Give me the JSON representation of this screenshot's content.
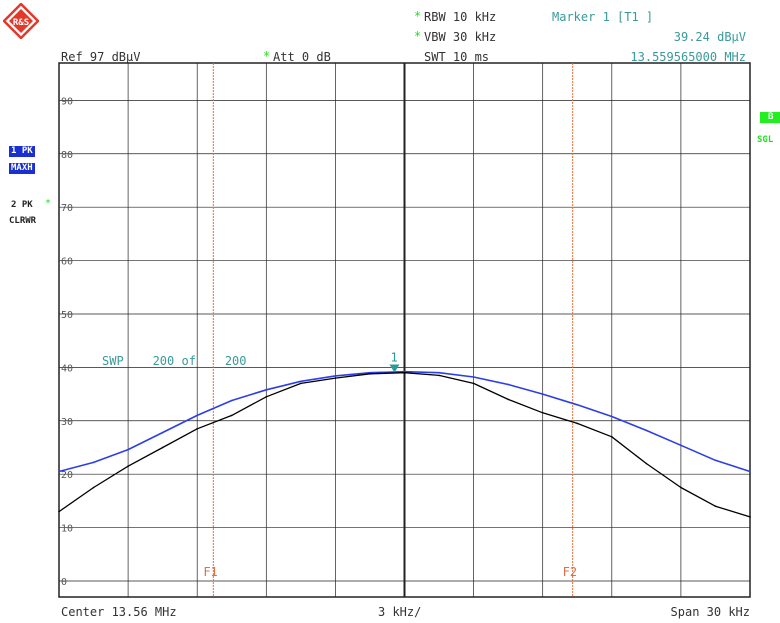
{
  "logo": {
    "letters": "R&S",
    "color": "#e23a2a"
  },
  "header": {
    "rbw": "RBW 10 kHz",
    "vbw": "VBW 30 kHz",
    "swt": "SWT 10 ms",
    "ref": "Ref  97 dBµV",
    "att": "Att  0 dB",
    "changed_mark": "*",
    "marker_title": "Marker 1 [T1 ]",
    "marker_level": "39.24 dBµV",
    "marker_freq": "13.559565000 MHz"
  },
  "side_left": {
    "trace1_label": "1 PK",
    "trace1_mode": "MAXH",
    "trace2_label": "2 PK",
    "trace2_mark": "*",
    "trace2_mode": "CLRWR"
  },
  "side_right": {
    "badge": "B",
    "mode": "SGL"
  },
  "sweep_info": "SWP    200 of    200",
  "marker_label": "1",
  "lines": {
    "f1": "F1",
    "f2": "F2"
  },
  "footer": {
    "center": "Center 13.56 MHz",
    "div": "3 kHz/",
    "span": "Span 30 kHz"
  },
  "colors": {
    "trace_maxhold": "#2b3ee8",
    "trace_clearwrite": "#000000",
    "marker": "#2a9a9a",
    "frequency_lines": "#e07040",
    "grid": "#222222",
    "annotation": "#3a9a9a",
    "changed_mark": "#22dd22"
  },
  "chart_data": {
    "type": "line",
    "title": "",
    "xlabel": "",
    "ylabel": "",
    "xlim": [
      13.545,
      13.575
    ],
    "ylim": [
      -3,
      97
    ],
    "x_unit": "MHz",
    "y_unit": "dBµV",
    "y_tick_labels": [
      "90",
      "80",
      "70",
      "60",
      "50",
      "40",
      "30",
      "20",
      "10",
      "0"
    ],
    "y_tick_values": [
      90,
      80,
      70,
      60,
      50,
      40,
      30,
      20,
      10,
      0
    ],
    "grid": true,
    "vertical_lines": [
      {
        "label": "F1",
        "x": 13.5517
      },
      {
        "label": "F2",
        "x": 13.5673
      }
    ],
    "marker": {
      "label": "1",
      "x": 13.559565,
      "y": 39.24
    },
    "series": [
      {
        "key": "trace1_maxhold",
        "x": [
          13.545,
          13.5465,
          13.548,
          13.5495,
          13.551,
          13.5525,
          13.554,
          13.5555,
          13.557,
          13.5585,
          13.56,
          13.5615,
          13.563,
          13.5645,
          13.566,
          13.5675,
          13.569,
          13.5705,
          13.572,
          13.5735,
          13.575
        ],
        "values": [
          20.5,
          22.2,
          24.6,
          27.8,
          31.0,
          33.8,
          35.8,
          37.4,
          38.4,
          39.0,
          39.2,
          39.0,
          38.2,
          36.8,
          35.0,
          33.0,
          30.8,
          28.2,
          25.4,
          22.6,
          20.5
        ]
      },
      {
        "key": "trace2_clearwrite",
        "x": [
          13.545,
          13.5465,
          13.548,
          13.5495,
          13.551,
          13.5525,
          13.554,
          13.5555,
          13.557,
          13.5585,
          13.56,
          13.5615,
          13.563,
          13.5645,
          13.566,
          13.5675,
          13.569,
          13.5705,
          13.572,
          13.5735,
          13.575
        ],
        "values": [
          13.0,
          17.5,
          21.5,
          25.0,
          28.5,
          31.0,
          34.5,
          37.0,
          38.0,
          38.8,
          39.0,
          38.5,
          37.0,
          34.0,
          31.5,
          29.5,
          27.0,
          22.0,
          17.5,
          14.0,
          12.0
        ]
      }
    ]
  }
}
